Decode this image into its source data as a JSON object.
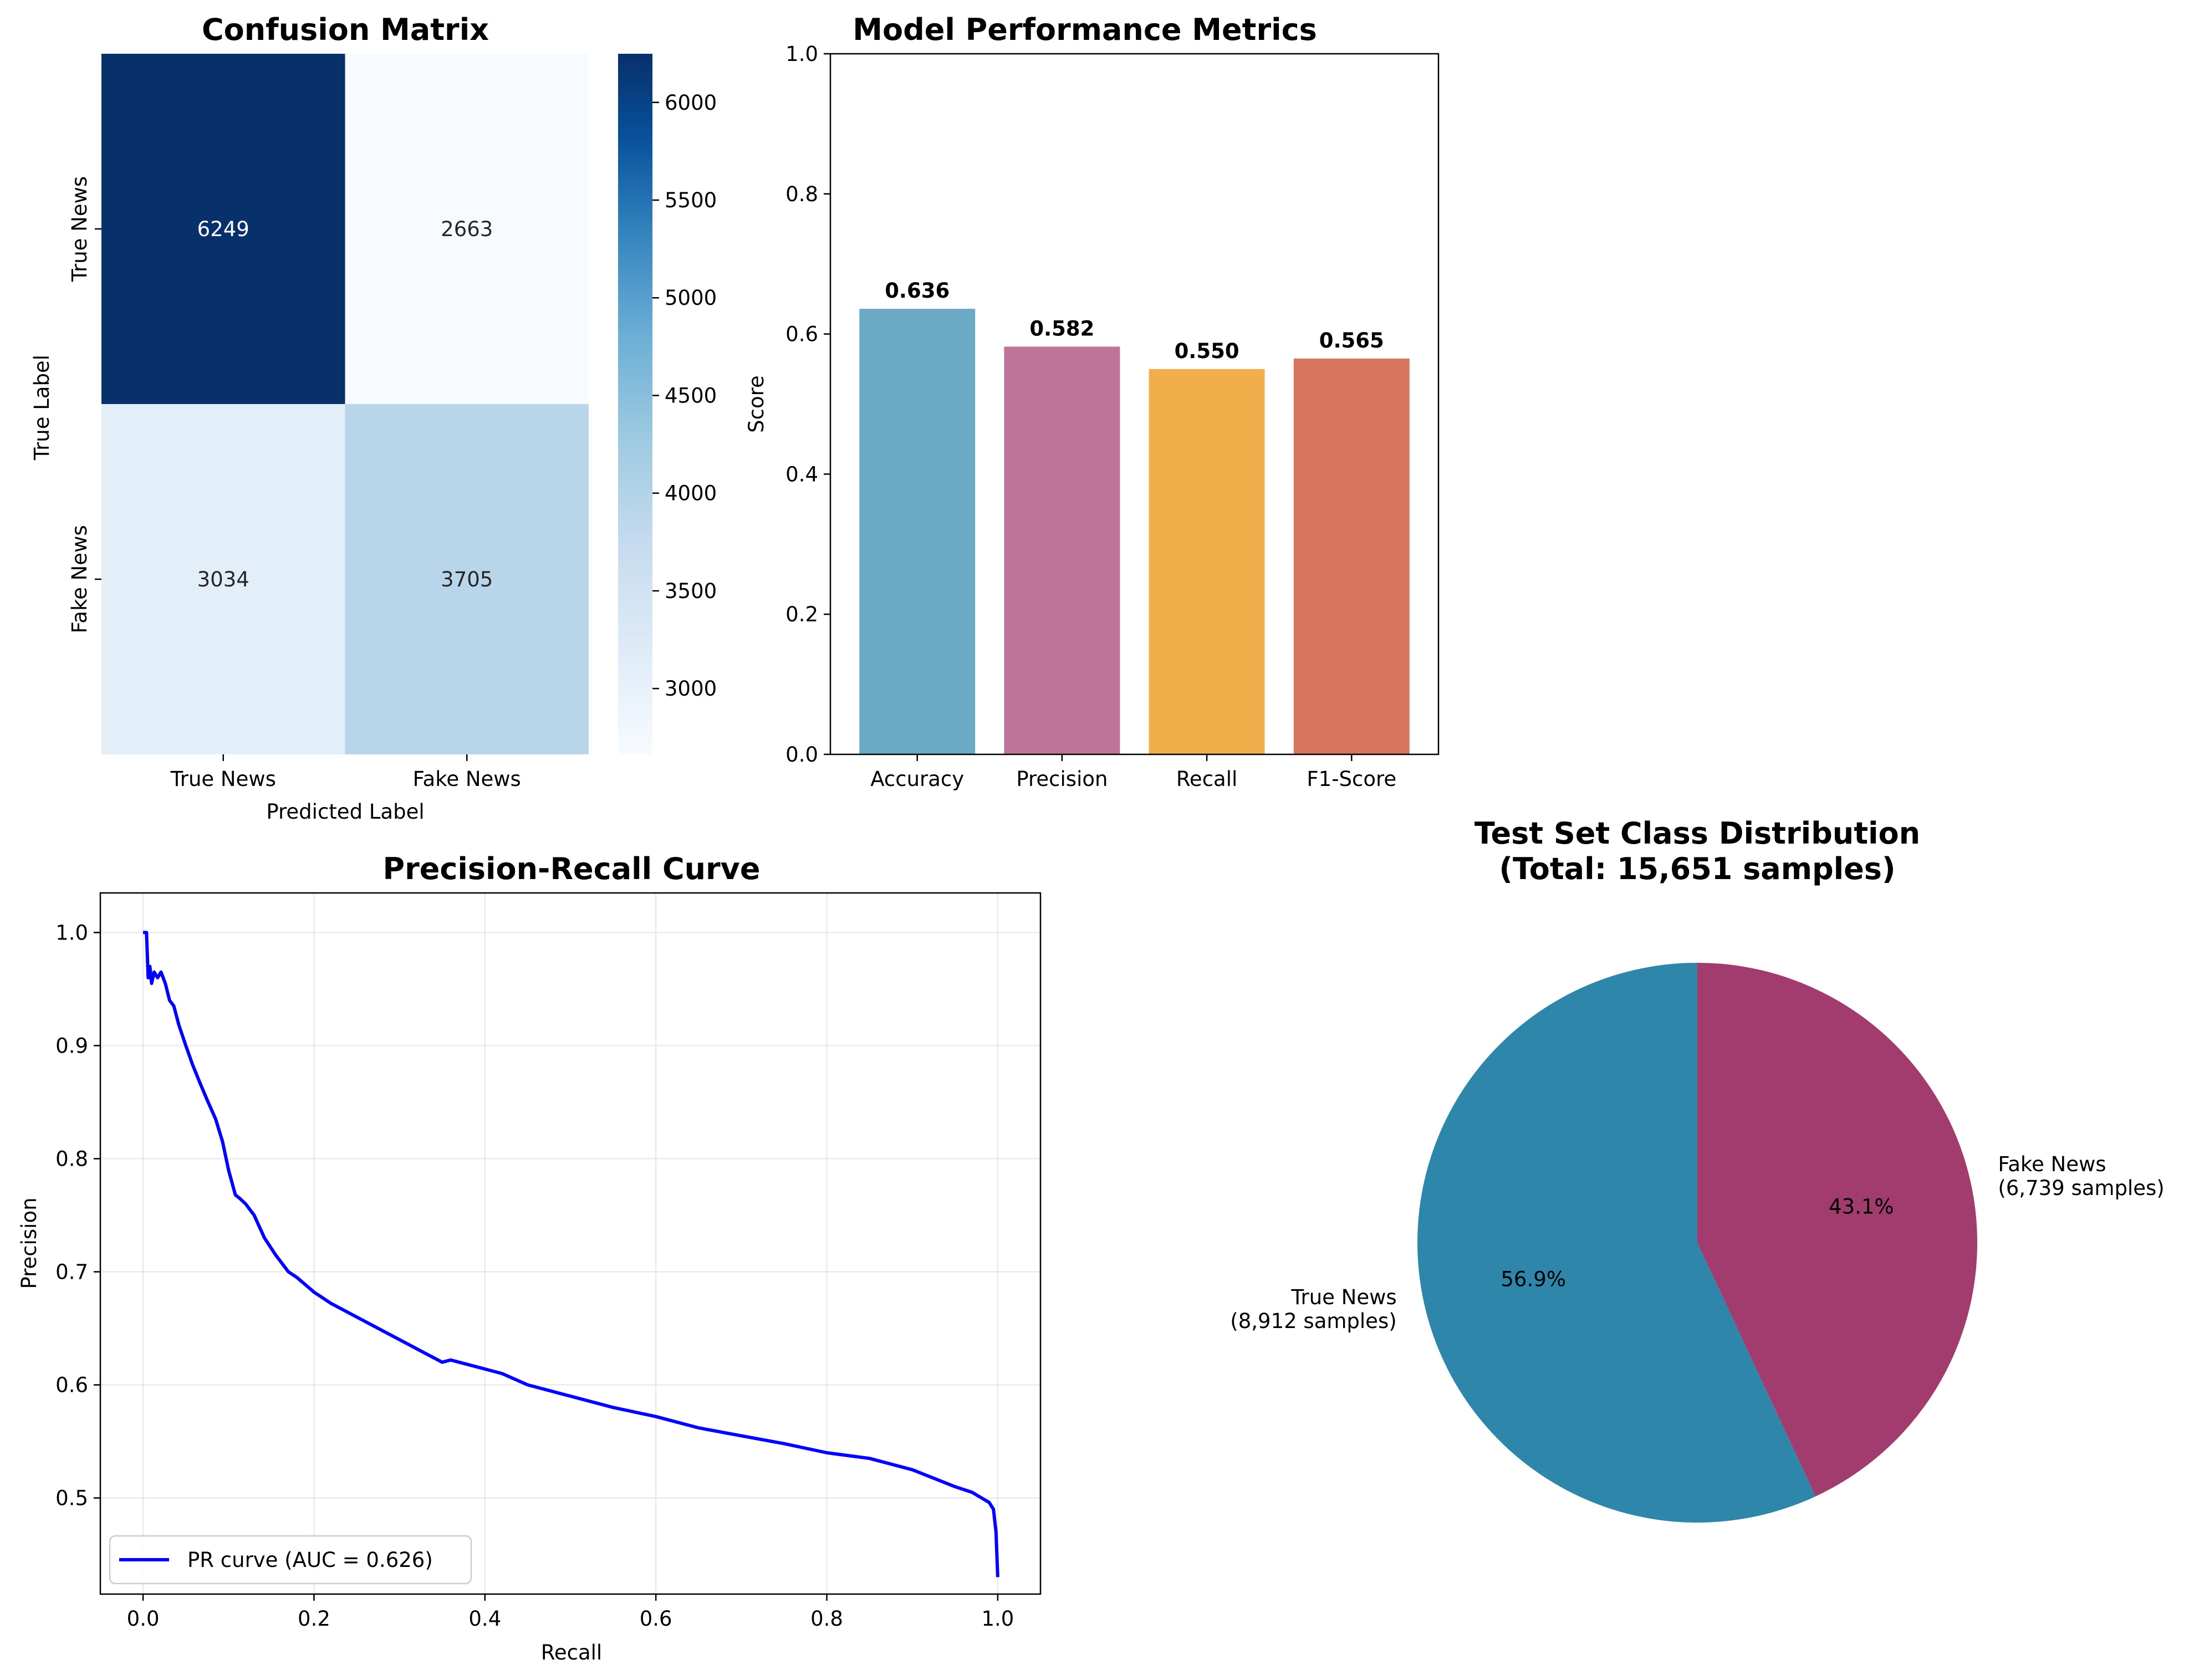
{
  "chart_data": [
    {
      "type": "heatmap",
      "title": "Confusion Matrix",
      "xlabel": "Predicted Label",
      "ylabel": "True Label",
      "x_categories": [
        "True News",
        "Fake News"
      ],
      "y_categories": [
        "True News",
        "Fake News"
      ],
      "values": [
        [
          6249,
          2663
        ],
        [
          3034,
          3705
        ]
      ],
      "colormap": "Blues",
      "colorbar": {
        "min": 2663,
        "max": 6249,
        "ticks": [
          "3000",
          "3500",
          "4000",
          "4500",
          "5000",
          "5500",
          "6000"
        ]
      }
    },
    {
      "type": "bar",
      "title": "Model Performance Metrics",
      "xlabel": "",
      "ylabel": "Score",
      "categories": [
        "Accuracy",
        "Precision",
        "Recall",
        "F1-Score"
      ],
      "values": [
        0.636,
        0.582,
        0.55,
        0.565
      ],
      "value_labels": [
        "0.636",
        "0.582",
        "0.550",
        "0.565"
      ],
      "colors": [
        "#6ca9c4",
        "#bd7498",
        "#f3ae4c",
        "#d6765f"
      ],
      "ylim": [
        0,
        1
      ],
      "yticks": [
        "0.0",
        "0.2",
        "0.4",
        "0.6",
        "0.8",
        "1.0"
      ]
    },
    {
      "type": "line",
      "title": "Precision-Recall Curve",
      "xlabel": "Recall",
      "ylabel": "Precision",
      "xlim": [
        -0.05,
        1.05
      ],
      "ylim": [
        0.415,
        1.035
      ],
      "xticks": [
        "0.0",
        "0.2",
        "0.4",
        "0.6",
        "0.8",
        "1.0"
      ],
      "yticks": [
        "0.5",
        "0.6",
        "0.7",
        "0.8",
        "0.9",
        "1.0"
      ],
      "grid": true,
      "legend_position": "lower-left",
      "series": [
        {
          "name": "PR curve (AUC = 0.626)",
          "color": "#0000ff",
          "x": [
            0.0,
            0.004,
            0.006,
            0.008,
            0.01,
            0.013,
            0.017,
            0.021,
            0.026,
            0.031,
            0.036,
            0.042,
            0.05,
            0.058,
            0.066,
            0.075,
            0.085,
            0.093,
            0.1,
            0.108,
            0.113,
            0.12,
            0.13,
            0.142,
            0.155,
            0.17,
            0.18,
            0.2,
            0.22,
            0.25,
            0.28,
            0.3,
            0.32,
            0.35,
            0.36,
            0.38,
            0.42,
            0.45,
            0.5,
            0.55,
            0.6,
            0.65,
            0.7,
            0.75,
            0.8,
            0.85,
            0.9,
            0.95,
            0.97,
            0.99,
            0.995,
            0.998,
            1.0
          ],
          "y": [
            1.0,
            1.0,
            0.96,
            0.97,
            0.955,
            0.965,
            0.96,
            0.965,
            0.955,
            0.94,
            0.935,
            0.918,
            0.9,
            0.883,
            0.868,
            0.852,
            0.835,
            0.815,
            0.79,
            0.768,
            0.765,
            0.76,
            0.75,
            0.73,
            0.715,
            0.7,
            0.695,
            0.682,
            0.672,
            0.66,
            0.648,
            0.64,
            0.632,
            0.62,
            0.622,
            0.618,
            0.61,
            0.6,
            0.59,
            0.58,
            0.572,
            0.562,
            0.555,
            0.548,
            0.54,
            0.535,
            0.525,
            0.51,
            0.505,
            0.496,
            0.49,
            0.47,
            0.43
          ]
        }
      ]
    },
    {
      "type": "pie",
      "title": "Test Set Class Distribution\n(Total: 15,651 samples)",
      "title_lines": [
        "Test Set Class Distribution",
        "(Total: 15,651 samples)"
      ],
      "slices": [
        {
          "label": "True News",
          "sublabel": "(8,912 samples)",
          "value": 8912,
          "pct": "56.9%",
          "color": "#2e86ab"
        },
        {
          "label": "Fake News",
          "sublabel": "(6,739 samples)",
          "value": 6739,
          "pct": "43.1%",
          "color": "#a23b6e"
        }
      ]
    }
  ]
}
